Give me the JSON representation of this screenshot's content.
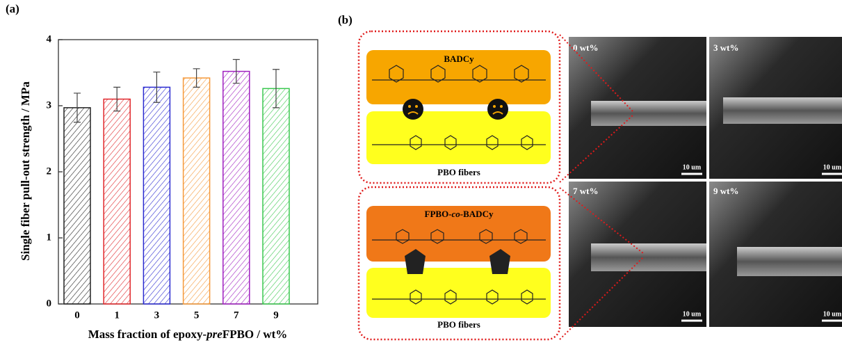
{
  "panel_a_label": "(a)",
  "panel_b_label": "(b)",
  "chart_data": {
    "type": "bar",
    "y_label": "Single fiber pull-out strength / MPa",
    "x_label_parts": [
      "Mass fraction of epoxy-",
      "pre",
      "FPBO / wt%"
    ],
    "categories": [
      "0",
      "1",
      "3",
      "5",
      "7",
      "9"
    ],
    "values": [
      2.97,
      3.1,
      3.28,
      3.42,
      3.52,
      3.26
    ],
    "errors": [
      0.22,
      0.18,
      0.23,
      0.14,
      0.18,
      0.29
    ],
    "colors": [
      "#222222",
      "#e0262a",
      "#2a2ad0",
      "#f5993a",
      "#a020c0",
      "#3cc850"
    ],
    "ylim": [
      0,
      4
    ],
    "yticks": [
      0,
      1,
      2,
      3,
      4
    ]
  },
  "diagram": {
    "top": {
      "matrix": "BADCy",
      "fiber": "PBO fibers"
    },
    "bottom": {
      "matrix_parts": [
        "FPBO-",
        "co",
        "-BADCy"
      ],
      "fiber": "PBO fibers"
    }
  },
  "micrographs": [
    {
      "label": "0 wt%",
      "scale": "10 um"
    },
    {
      "label": "3 wt%",
      "scale": "10 um"
    },
    {
      "label": "7 wt%",
      "scale": "10 um"
    },
    {
      "label": "9 wt%",
      "scale": "10 um"
    }
  ]
}
